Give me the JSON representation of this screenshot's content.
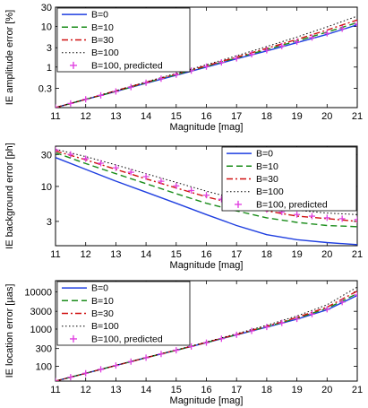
{
  "chart_data": [
    {
      "type": "line",
      "xlabel": "Magnitude [mag]",
      "ylabel": "IE amplitude error [%]",
      "xlim": [
        11,
        21
      ],
      "ylim": [
        0.1,
        30
      ],
      "yscale": "log",
      "grid": false,
      "legend_position": "top-left",
      "xticks": [
        "11",
        "12",
        "13",
        "14",
        "15",
        "16",
        "17",
        "18",
        "19",
        "20",
        "21"
      ],
      "yticks": [
        {
          "value": 0.3,
          "label": "0.3"
        },
        {
          "value": 1,
          "label": "1"
        },
        {
          "value": 3,
          "label": "3"
        },
        {
          "value": 10,
          "label": "10"
        },
        {
          "value": 30,
          "label": "30"
        }
      ],
      "x": [
        11,
        12,
        13,
        14,
        15,
        16,
        17,
        18,
        19,
        20,
        21
      ],
      "series": [
        {
          "name": "B=0",
          "style": "solid",
          "color": "#1f3fe0",
          "values": [
            0.1,
            0.16,
            0.25,
            0.4,
            0.63,
            1.0,
            1.6,
            2.5,
            4.0,
            6.4,
            11.0
          ]
        },
        {
          "name": "B=10",
          "style": "dashed",
          "color": "#1a8c1a",
          "values": [
            0.1,
            0.16,
            0.25,
            0.41,
            0.65,
            1.04,
            1.68,
            2.7,
            4.4,
            7.3,
            12.5
          ]
        },
        {
          "name": "B=30",
          "style": "dashdot",
          "color": "#d01010",
          "values": [
            0.1,
            0.16,
            0.26,
            0.42,
            0.67,
            1.08,
            1.75,
            2.9,
            4.8,
            8.2,
            14.5
          ]
        },
        {
          "name": "B=100",
          "style": "dotted",
          "color": "#000000",
          "values": [
            0.1,
            0.16,
            0.26,
            0.43,
            0.7,
            1.14,
            1.9,
            3.2,
            5.5,
            9.8,
            18.0
          ]
        },
        {
          "name": "B=100, predicted",
          "style": "markers",
          "color": "#e040e0",
          "values": [
            0.1,
            0.16,
            0.25,
            0.41,
            0.65,
            1.03,
            1.64,
            2.6,
            4.2,
            6.8,
            11.5
          ]
        }
      ]
    },
    {
      "type": "line",
      "xlabel": "Magnitude [mag]",
      "ylabel": "IE background error [ph]",
      "xlim": [
        11,
        21
      ],
      "ylim": [
        1.3,
        40
      ],
      "yscale": "log",
      "grid": false,
      "legend_position": "top-right",
      "xticks": [
        "11",
        "12",
        "13",
        "14",
        "15",
        "16",
        "17",
        "18",
        "19",
        "20",
        "21"
      ],
      "yticks": [
        {
          "value": 3,
          "label": "3"
        },
        {
          "value": 10,
          "label": "10"
        },
        {
          "value": 30,
          "label": "30"
        }
      ],
      "x": [
        11,
        12,
        13,
        14,
        15,
        16,
        17,
        18,
        19,
        20,
        21
      ],
      "series": [
        {
          "name": "B=0",
          "style": "solid",
          "color": "#1f3fe0",
          "values": [
            27,
            18,
            12,
            8.2,
            5.6,
            3.8,
            2.6,
            1.9,
            1.6,
            1.45,
            1.35
          ]
        },
        {
          "name": "B=10",
          "style": "dashed",
          "color": "#1a8c1a",
          "values": [
            32,
            22,
            15.5,
            11,
            7.8,
            5.6,
            4.3,
            3.4,
            2.9,
            2.6,
            2.5
          ]
        },
        {
          "name": "B=30",
          "style": "dashdot",
          "color": "#d01010",
          "values": [
            34,
            25,
            18,
            13,
            9.5,
            7.0,
            5.4,
            4.3,
            3.6,
            3.3,
            3.0
          ]
        },
        {
          "name": "B=100",
          "style": "dotted",
          "color": "#000000",
          "values": [
            36,
            28,
            21,
            15.5,
            11.5,
            8.5,
            6.5,
            5.2,
            4.4,
            4.0,
            3.8
          ]
        },
        {
          "name": "B=100, predicted",
          "style": "markers",
          "color": "#e040e0",
          "values": [
            35,
            26,
            19,
            14,
            10.2,
            7.4,
            5.6,
            4.5,
            3.8,
            3.4,
            3.2
          ]
        }
      ]
    },
    {
      "type": "line",
      "xlabel": "Magnitude [mag]",
      "ylabel": "IE location error [µas]",
      "xlim": [
        11,
        21
      ],
      "ylim": [
        40,
        20000
      ],
      "yscale": "log",
      "grid": false,
      "legend_position": "top-left",
      "xticks": [
        "11",
        "12",
        "13",
        "14",
        "15",
        "16",
        "17",
        "18",
        "19",
        "20",
        "21"
      ],
      "yticks": [
        {
          "value": 100,
          "label": "100"
        },
        {
          "value": 300,
          "label": "300"
        },
        {
          "value": 1000,
          "label": "1000"
        },
        {
          "value": 3000,
          "label": "3000"
        },
        {
          "value": 10000,
          "label": "10000"
        }
      ],
      "x": [
        11,
        12,
        13,
        14,
        15,
        16,
        17,
        18,
        19,
        20,
        21
      ],
      "series": [
        {
          "name": "B=0",
          "style": "solid",
          "color": "#1f3fe0",
          "values": [
            40,
            65,
            105,
            170,
            270,
            430,
            700,
            1130,
            1850,
            3300,
            8000
          ]
        },
        {
          "name": "B=10",
          "style": "dashed",
          "color": "#1a8c1a",
          "values": [
            40,
            65,
            105,
            170,
            270,
            435,
            710,
            1160,
            1950,
            3600,
            9000
          ]
        },
        {
          "name": "B=30",
          "style": "dashdot",
          "color": "#d01010",
          "values": [
            40,
            65,
            105,
            170,
            272,
            440,
            720,
            1190,
            2050,
            3900,
            10500
          ]
        },
        {
          "name": "B=100",
          "style": "dotted",
          "color": "#000000",
          "values": [
            40,
            65,
            105,
            172,
            275,
            450,
            750,
            1270,
            2250,
            4500,
            13500
          ]
        },
        {
          "name": "B=100, predicted",
          "style": "markers",
          "color": "#e040e0",
          "values": [
            40,
            65,
            105,
            170,
            270,
            432,
            702,
            1140,
            1880,
            3400,
            8300
          ]
        }
      ]
    }
  ]
}
